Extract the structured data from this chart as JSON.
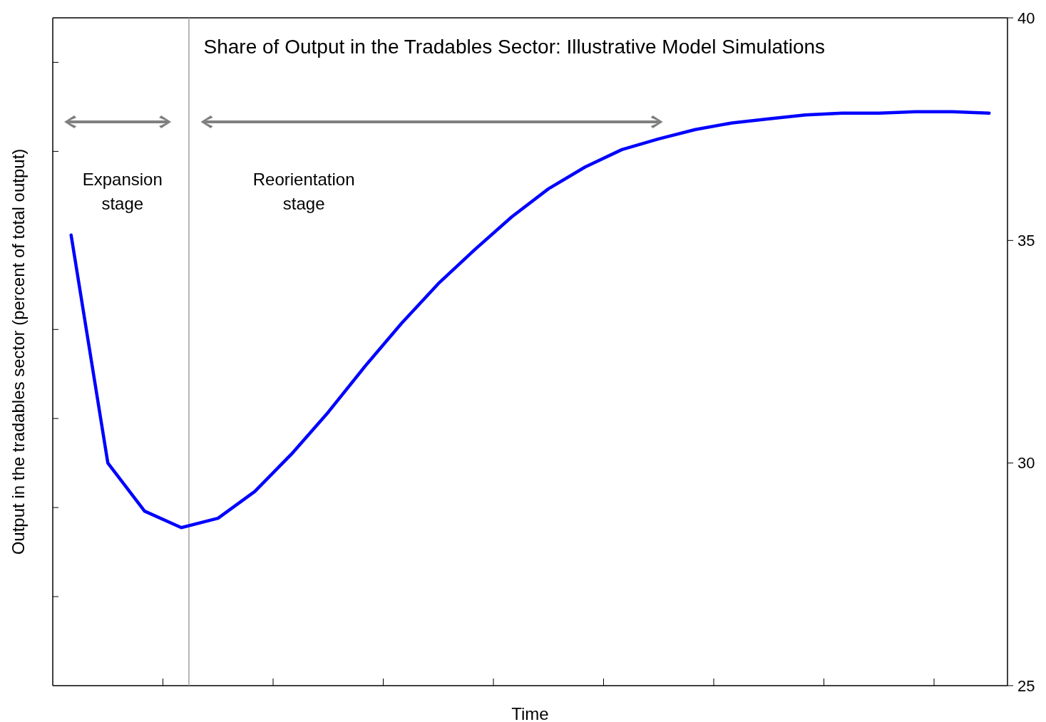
{
  "chart_data": {
    "type": "line",
    "title": "Share of Output in the Tradables Sector: Illustrative Model Simulations",
    "xlabel": "Time",
    "ylabel": "Output in the tradables sector (percent of total output)",
    "annotations": [
      "Expansion\nstage",
      "Reorientation\nstage"
    ],
    "categories": [
      null,
      null,
      null,
      null,
      null,
      null,
      null,
      null,
      null,
      null,
      null,
      null,
      null,
      null,
      null,
      null,
      null,
      null,
      null,
      null,
      null,
      null,
      null,
      null,
      null,
      null
    ],
    "series": [
      {
        "color": "#0000ff",
        "values": [
          35.12,
          30.0,
          28.92,
          28.55,
          28.76,
          29.36,
          30.2,
          31.14,
          32.17,
          33.14,
          34.03,
          34.8,
          35.53,
          36.16,
          36.65,
          37.04,
          37.28,
          37.49,
          37.64,
          37.73,
          37.82,
          37.86,
          37.86,
          37.89,
          37.89,
          37.86
        ]
      }
    ],
    "ylim": [
      25,
      40
    ],
    "yticks": [
      25,
      {
        "value": 27,
        "label": null
      },
      {
        "value": 29,
        "label": null
      },
      30,
      {
        "value": 31,
        "label": null
      },
      {
        "value": 33,
        "label": null
      },
      35,
      {
        "value": 37,
        "label": null
      },
      {
        "value": 39,
        "label": null
      },
      40
    ],
    "tick_labels": "y",
    "grid": false,
    "marker": "none",
    "line_style": "solid"
  }
}
